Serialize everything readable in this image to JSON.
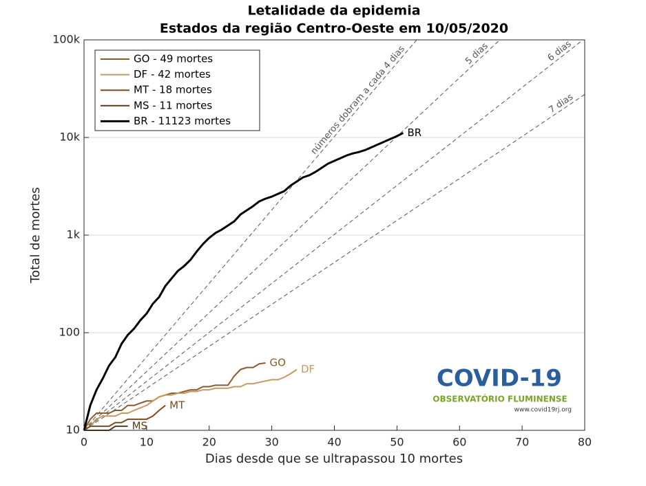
{
  "chart_data": {
    "type": "line",
    "title": [
      "Letalidade da epidemia",
      "Estados da região Centro-Oeste em 10/05/2020"
    ],
    "x_label": "Dias desde que se ultrapassou 10 mortes",
    "y_label": "Total de mortes",
    "log_y": true,
    "grid": true,
    "legend": "upper-left",
    "xlim": [
      0,
      80
    ],
    "xticks": [
      0,
      10,
      20,
      30,
      40,
      50,
      60,
      70,
      80
    ],
    "ylim": [
      10,
      100000
    ],
    "yticks": [
      10,
      100,
      {
        "value": 1000,
        "label": "1k"
      },
      {
        "value": 10000,
        "label": "10k"
      },
      {
        "value": 100000,
        "label": "100k"
      }
    ],
    "series": [
      {
        "name": "GO - 49 mortes",
        "end_label": "GO",
        "color": "#8b5a2b",
        "x": [
          0,
          1,
          2,
          3,
          4,
          5,
          6,
          7,
          8,
          9,
          10,
          11,
          12,
          13,
          14,
          15,
          16,
          17,
          18,
          19,
          20,
          21,
          22,
          23,
          24,
          25,
          26,
          27,
          28,
          29
        ],
        "values": [
          10,
          13,
          15,
          15,
          15,
          16,
          16,
          18,
          18,
          19,
          20,
          20,
          22,
          23,
          24,
          24,
          25,
          26,
          26,
          28,
          28,
          29,
          29,
          29,
          36,
          42,
          44,
          44,
          48,
          49
        ]
      },
      {
        "name": "DF - 42 mortes",
        "end_label": "DF",
        "color": "#c49a62",
        "x": [
          0,
          1,
          2,
          3,
          4,
          5,
          6,
          7,
          8,
          9,
          10,
          11,
          12,
          13,
          14,
          15,
          16,
          17,
          18,
          19,
          20,
          21,
          22,
          23,
          24,
          25,
          26,
          27,
          28,
          29,
          30,
          31,
          32,
          33,
          34
        ],
        "values": [
          10,
          11,
          13,
          14,
          14,
          14,
          15,
          15,
          16,
          17,
          18,
          20,
          22,
          23,
          23,
          24,
          24,
          25,
          25,
          26,
          26,
          27,
          27,
          27,
          28,
          28,
          30,
          30,
          31,
          32,
          33,
          33,
          35,
          38,
          42
        ]
      },
      {
        "name": "MT - 18 mortes",
        "end_label": "MT",
        "color": "#7a4a1e",
        "x": [
          0,
          1,
          2,
          3,
          4,
          5,
          6,
          7,
          8,
          9,
          10,
          11,
          12,
          13
        ],
        "values": [
          10,
          11,
          11,
          11,
          11,
          12,
          12,
          13,
          13,
          13,
          13,
          14,
          16,
          18
        ]
      },
      {
        "name": "MS - 11 mortes",
        "end_label": "MS",
        "color": "#5a3a18",
        "x": [
          0,
          1,
          2,
          3,
          4,
          5,
          6,
          7
        ],
        "values": [
          10,
          10,
          10,
          10,
          10,
          11,
          11,
          11
        ]
      },
      {
        "name": "BR - 11123 mortes",
        "end_label": "BR",
        "color": "#000000",
        "x": [
          0,
          1,
          2,
          3,
          4,
          5,
          6,
          7,
          8,
          9,
          10,
          11,
          12,
          13,
          14,
          15,
          16,
          17,
          18,
          19,
          20,
          21,
          22,
          23,
          24,
          25,
          26,
          27,
          28,
          29,
          30,
          31,
          32,
          33,
          34,
          35,
          36,
          37,
          38,
          39,
          40,
          41,
          42,
          43,
          44,
          45,
          46,
          47,
          48,
          49,
          50,
          51
        ],
        "values": [
          10,
          18,
          26,
          34,
          46,
          56,
          77,
          95,
          110,
          134,
          157,
          198,
          232,
          301,
          360,
          430,
          482,
          557,
          678,
          809,
          937,
          1050,
          1138,
          1256,
          1384,
          1627,
          1794,
          1977,
          2215,
          2362,
          2479,
          2645,
          2823,
          3215,
          3542,
          3905,
          4101,
          4447,
          4899,
          5400,
          5761,
          6147,
          6561,
          6884,
          7116,
          7467,
          7966,
          8504,
          9075,
          9684,
          10330,
          11123
        ]
      }
    ],
    "doubling_lines": [
      {
        "days": 4,
        "label": "números dobram a cada 4 dias"
      },
      {
        "days": 5,
        "label": "5 dias"
      },
      {
        "days": 6,
        "label": "6 dias"
      },
      {
        "days": 7,
        "label": "7 dias"
      }
    ],
    "logo": {
      "title": "COVID-19",
      "subtitle": "OBSERVATÓRIO FLUMINENSE",
      "url": "www.covid19rj.org"
    }
  }
}
